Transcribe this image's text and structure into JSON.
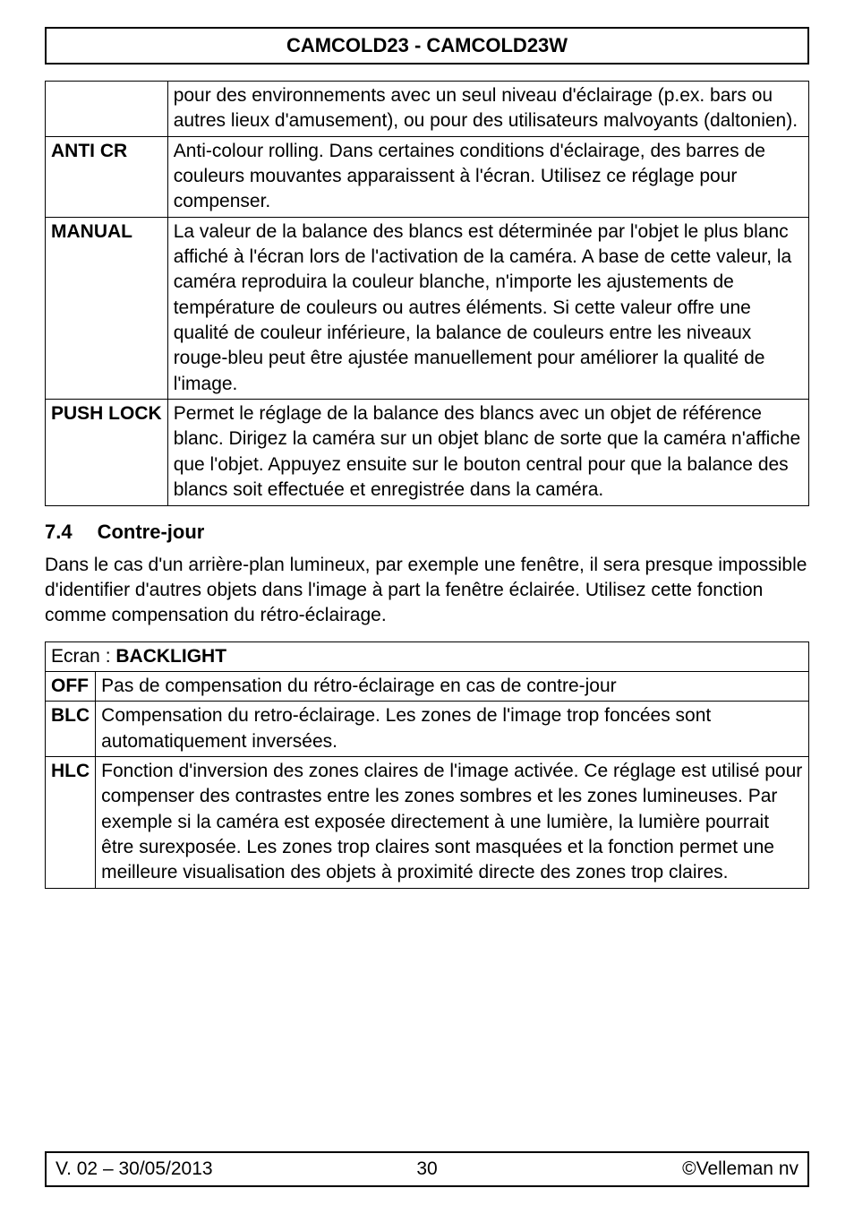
{
  "header": {
    "title": "CAMCOLD23 - CAMCOLD23W"
  },
  "table1": {
    "rows": [
      {
        "label": "",
        "text": "pour des environnements avec un seul niveau d'éclairage (p.ex. bars ou autres lieux d'amusement), ou pour des utilisateurs malvoyants (daltonien)."
      },
      {
        "label": "ANTI CR",
        "text": "Anti-colour rolling. Dans certaines conditions d'éclairage, des barres de couleurs mouvantes apparaissent à l'écran. Utilisez ce réglage pour compenser."
      },
      {
        "label": "MANUAL",
        "text": "La valeur de la balance des blancs est déterminée par l'objet le plus blanc affiché à l'écran lors de l'activation de la caméra. A base de cette valeur, la caméra reproduira la couleur blanche, n'importe les ajustements de température de couleurs ou autres éléments. Si cette valeur offre une qualité de couleur inférieure, la balance de couleurs entre les niveaux rouge-bleu peut être ajustée manuellement pour améliorer la qualité de l'image."
      },
      {
        "label": "PUSH LOCK",
        "text": "Permet le réglage de la balance des blancs avec un objet de référence blanc. Dirigez la caméra sur un objet blanc de sorte que la caméra n'affiche que l'objet. Appuyez ensuite sur le bouton central pour que la balance des blancs soit effectuée et enregistrée dans la caméra."
      }
    ]
  },
  "section": {
    "number": "7.4",
    "title": "Contre-jour",
    "paragraph": "Dans le cas d'un arrière-plan lumineux, par exemple une fenêtre, il sera presque impossible d'identifier d'autres objets dans l'image à part la fenêtre éclairée. Utilisez cette fonction comme compensation du rétro-éclairage."
  },
  "table2": {
    "screen_prefix": "Ecran : ",
    "screen_name": "BACKLIGHT",
    "rows": [
      {
        "label": "OFF",
        "text": "Pas de compensation du rétro-éclairage en cas de contre-jour"
      },
      {
        "label": "BLC",
        "text": "Compensation du retro-éclairage. Les zones de l'image trop foncées sont automatiquement inversées."
      },
      {
        "label": "HLC",
        "text": "Fonction d'inversion des zones claires de l'image activée. Ce réglage est utilisé pour compenser des contrastes entre les zones sombres et les zones lumineuses. Par exemple si la caméra est exposée directement à une lumière, la lumière pourrait être surexposée. Les zones trop claires sont masquées et la fonction permet une meilleure visualisation des objets à proximité directe des zones trop claires."
      }
    ]
  },
  "footer": {
    "version": "V. 02 – 30/05/2013",
    "page": "30",
    "copyright": "©Velleman nv"
  }
}
